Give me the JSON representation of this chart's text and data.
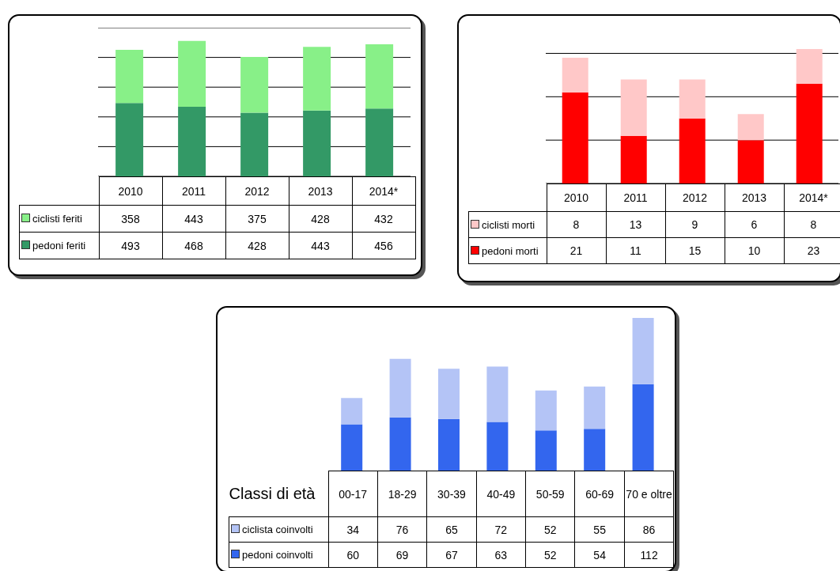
{
  "chart_data": [
    {
      "type": "bar",
      "stacked": true,
      "categories": [
        "2010",
        "2011",
        "2012",
        "2013",
        "2014*"
      ],
      "series": [
        {
          "name": "pedoni feriti",
          "color": "#339966",
          "values": [
            493,
            468,
            428,
            443,
            456
          ]
        },
        {
          "name": "ciclisti feriti",
          "color": "#88f088",
          "values": [
            358,
            443,
            375,
            428,
            432
          ]
        }
      ],
      "ylim": [
        0,
        1000
      ],
      "yticks": [
        {
          "value": 0,
          "label": null
        },
        {
          "value": 200,
          "label": null
        },
        {
          "value": 400,
          "label": null
        },
        {
          "value": 600,
          "label": null
        },
        {
          "value": 800,
          "label": null
        },
        {
          "value": 1000,
          "label": null
        }
      ],
      "grid": "y",
      "tick_labels": false,
      "legend": "bottom",
      "data_labels": true
    },
    {
      "type": "bar",
      "stacked": true,
      "categories": [
        "2010",
        "2011",
        "2012",
        "2013",
        "2014*"
      ],
      "series": [
        {
          "name": "pedoni morti",
          "color": "#ff0000",
          "values": [
            21,
            11,
            15,
            10,
            23
          ]
        },
        {
          "name": "ciclisti morti",
          "color": "#ffc8c8",
          "values": [
            8,
            13,
            9,
            6,
            8
          ]
        }
      ],
      "yticks": [
        {
          "value": 0,
          "label": null
        },
        {
          "value": 10,
          "label": null
        },
        {
          "value": 20,
          "label": null
        },
        {
          "value": 30,
          "label": null
        }
      ],
      "grid": "y",
      "tick_labels": false,
      "legend": "bottom",
      "data_labels": true
    },
    {
      "type": "bar",
      "stacked": true,
      "xlabel": "Classi di età",
      "categories": [
        "00-17",
        "18-29",
        "30-39",
        "40-49",
        "50-59",
        "60-69",
        "70 e oltre"
      ],
      "series": [
        {
          "name": "pedoni coinvolti",
          "color": "#3366ee",
          "values": [
            60,
            69,
            67,
            63,
            52,
            54,
            112
          ]
        },
        {
          "name": "ciclista coinvolti",
          "color": "#b4c4f6",
          "values": [
            34,
            76,
            65,
            72,
            52,
            55,
            86
          ]
        }
      ],
      "tick_labels": false,
      "legend": "bottom",
      "data_labels": true
    }
  ]
}
